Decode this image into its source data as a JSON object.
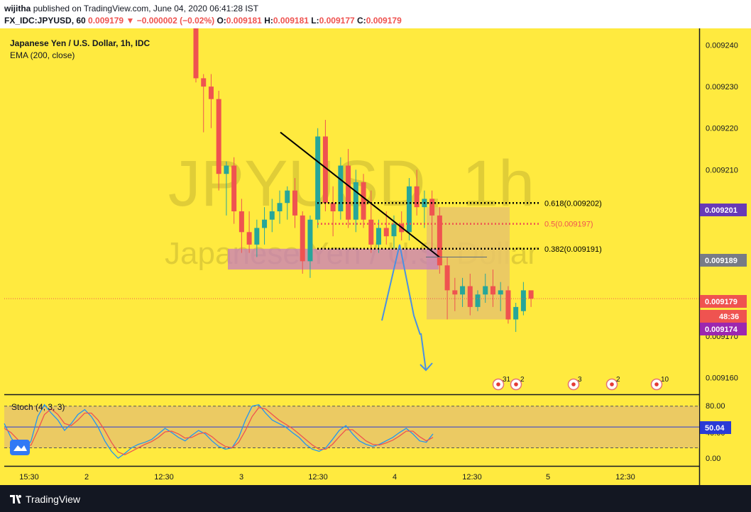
{
  "header": {
    "publisher": "wijitha",
    "published_text": "published on TradingView.com, June 04, 2020 06:41:28 IST",
    "symbol_line": "FX_IDC:JPYUSD, 60",
    "last": "0.009179",
    "change_arrow": "▼",
    "change": "−0.000002 (−0.02%)",
    "o_label": "O:",
    "o_value": "0.009181",
    "h_label": "H:",
    "h_value": "0.009181",
    "l_label": "L:",
    "l_value": "0.009177",
    "c_label": "C:",
    "c_value": "0.009179"
  },
  "legend": {
    "title": "Japanese Yen / U.S. Dollar, 1h, IDC",
    "ema": "EMA (200, close)"
  },
  "watermark": {
    "main": "JPYUSD, 1h",
    "sub": "Japanese Yen / U.S. Dollar"
  },
  "colors": {
    "background": "#ffea3f",
    "up": "#26a69a",
    "down": "#ef5350",
    "zone": "#c77bc0",
    "box": "#e8c46a",
    "trendline": "#000000",
    "arrow": "#4a90e2"
  },
  "footer": {
    "brand": "TradingView"
  },
  "chart_data": [
    {
      "type": "candlestick",
      "ylim": [
        0.009156,
        0.009244
      ],
      "y_ticks": [
        "0.009240",
        "0.009230",
        "0.009220",
        "0.009210",
        "0.009170",
        "0.009160"
      ],
      "x_ticks": [
        "15:30",
        "2",
        "12:30",
        "3",
        "12:30",
        "4",
        "12:30",
        "5",
        "12:30"
      ],
      "candles": [
        {
          "o": 0.00925,
          "h": 0.00925,
          "l": 0.009231,
          "c": 0.009232
        },
        {
          "o": 0.009232,
          "h": 0.009233,
          "l": 0.009219,
          "c": 0.00923
        },
        {
          "o": 0.00923,
          "h": 0.009233,
          "l": 0.00922,
          "c": 0.009227
        },
        {
          "o": 0.009227,
          "h": 0.009229,
          "l": 0.009205,
          "c": 0.009209
        },
        {
          "o": 0.009209,
          "h": 0.009212,
          "l": 0.009199,
          "c": 0.009211
        },
        {
          "o": 0.009211,
          "h": 0.009213,
          "l": 0.009197,
          "c": 0.0092
        },
        {
          "o": 0.0092,
          "h": 0.009203,
          "l": 0.00919,
          "c": 0.009195
        },
        {
          "o": 0.009195,
          "h": 0.0092,
          "l": 0.00919,
          "c": 0.009192
        },
        {
          "o": 0.009192,
          "h": 0.009198,
          "l": 0.009189,
          "c": 0.009196
        },
        {
          "o": 0.009196,
          "h": 0.009201,
          "l": 0.009192,
          "c": 0.009198
        },
        {
          "o": 0.009198,
          "h": 0.009203,
          "l": 0.009195,
          "c": 0.0092
        },
        {
          "o": 0.0092,
          "h": 0.009205,
          "l": 0.009197,
          "c": 0.009202
        },
        {
          "o": 0.009202,
          "h": 0.009206,
          "l": 0.009198,
          "c": 0.009205
        },
        {
          "o": 0.009205,
          "h": 0.009208,
          "l": 0.009196,
          "c": 0.009199
        },
        {
          "o": 0.009199,
          "h": 0.0092,
          "l": 0.009185,
          "c": 0.009188
        },
        {
          "o": 0.009188,
          "h": 0.009199,
          "l": 0.009184,
          "c": 0.009198
        },
        {
          "o": 0.009198,
          "h": 0.00922,
          "l": 0.009196,
          "c": 0.009218
        },
        {
          "o": 0.009218,
          "h": 0.009222,
          "l": 0.0092,
          "c": 0.009202
        },
        {
          "o": 0.009202,
          "h": 0.009206,
          "l": 0.009194,
          "c": 0.0092
        },
        {
          "o": 0.0092,
          "h": 0.009213,
          "l": 0.009198,
          "c": 0.009211
        },
        {
          "o": 0.009211,
          "h": 0.009215,
          "l": 0.009196,
          "c": 0.009198
        },
        {
          "o": 0.009198,
          "h": 0.00921,
          "l": 0.009195,
          "c": 0.009207
        },
        {
          "o": 0.009207,
          "h": 0.009209,
          "l": 0.009196,
          "c": 0.009198
        },
        {
          "o": 0.009198,
          "h": 0.009205,
          "l": 0.00919,
          "c": 0.009192
        },
        {
          "o": 0.009192,
          "h": 0.009198,
          "l": 0.00919,
          "c": 0.009196
        },
        {
          "o": 0.009196,
          "h": 0.0092,
          "l": 0.009192,
          "c": 0.009194
        },
        {
          "o": 0.009194,
          "h": 0.009199,
          "l": 0.009191,
          "c": 0.009197
        },
        {
          "o": 0.009197,
          "h": 0.0092,
          "l": 0.009193,
          "c": 0.009195
        },
        {
          "o": 0.009195,
          "h": 0.009208,
          "l": 0.009193,
          "c": 0.009206
        },
        {
          "o": 0.009206,
          "h": 0.00921,
          "l": 0.009199,
          "c": 0.009201
        },
        {
          "o": 0.009201,
          "h": 0.009205,
          "l": 0.009196,
          "c": 0.009203
        },
        {
          "o": 0.009203,
          "h": 0.009205,
          "l": 0.009191,
          "c": 0.009199
        },
        {
          "o": 0.009199,
          "h": 0.009201,
          "l": 0.009185,
          "c": 0.009187
        },
        {
          "o": 0.009187,
          "h": 0.009189,
          "l": 0.009174,
          "c": 0.009181
        },
        {
          "o": 0.009181,
          "h": 0.009184,
          "l": 0.009176,
          "c": 0.00918
        },
        {
          "o": 0.00918,
          "h": 0.009184,
          "l": 0.009177,
          "c": 0.009182
        },
        {
          "o": 0.009182,
          "h": 0.009185,
          "l": 0.009175,
          "c": 0.009177
        },
        {
          "o": 0.009177,
          "h": 0.009181,
          "l": 0.009176,
          "c": 0.00918
        },
        {
          "o": 0.00918,
          "h": 0.009185,
          "l": 0.009178,
          "c": 0.009182
        },
        {
          "o": 0.009182,
          "h": 0.009186,
          "l": 0.009177,
          "c": 0.00918
        },
        {
          "o": 0.00918,
          "h": 0.009183,
          "l": 0.009176,
          "c": 0.009181
        },
        {
          "o": 0.009181,
          "h": 0.009182,
          "l": 0.009173,
          "c": 0.009174
        },
        {
          "o": 0.009174,
          "h": 0.009178,
          "l": 0.009171,
          "c": 0.009177
        },
        {
          "o": 0.009176,
          "h": 0.009183,
          "l": 0.009175,
          "c": 0.009181
        },
        {
          "o": 0.009181,
          "h": 0.009181,
          "l": 0.009177,
          "c": 0.009179
        }
      ],
      "fibonacci": [
        {
          "label": "0.618(0.009202)",
          "value": 0.009202,
          "color": "#000000"
        },
        {
          "label": "0.5(0.009197)",
          "value": 0.009197,
          "color": "#ef5350"
        },
        {
          "label": "0.382(0.009191)",
          "value": 0.009191,
          "color": "#000000"
        }
      ],
      "supply_zone": {
        "from": 0.009186,
        "to": 0.009191
      },
      "target_box": {
        "from": 0.009174,
        "to": 0.009201
      },
      "price_labels": [
        {
          "text": "0.009201",
          "value": 0.009201,
          "color": "#673ab7"
        },
        {
          "text": "0.009189",
          "value": 0.009189,
          "color": "#787b86"
        },
        {
          "text": "0.009179",
          "value": 0.009179,
          "color": "#ef5350"
        },
        {
          "text": "48:36",
          "value": 0.009177,
          "color": "#ef5350"
        },
        {
          "text": "0.009174",
          "value": 0.009174,
          "color": "#9c27b0"
        }
      ],
      "events": [
        "31",
        "2",
        "3",
        "2",
        "10"
      ]
    },
    {
      "type": "line",
      "title": "Stoch (4, 3, 3)",
      "ylim": [
        -5,
        95
      ],
      "y_ticks": [
        "80.00",
        "40.00",
        "0.00"
      ],
      "levels": [
        80,
        20
      ],
      "midline": 50,
      "current_label": "50.04",
      "series": [
        {
          "color": "#2196f3",
          "values": [
            55,
            35,
            20,
            15,
            30,
            65,
            82,
            70,
            60,
            45,
            55,
            68,
            75,
            65,
            50,
            30,
            15,
            5,
            12,
            20,
            25,
            28,
            32,
            40,
            48,
            42,
            35,
            30,
            38,
            45,
            40,
            30,
            22,
            18,
            20,
            35,
            60,
            80,
            82,
            70,
            60,
            55,
            50,
            42,
            35,
            25,
            18,
            15,
            20,
            32,
            45,
            52,
            40,
            30,
            25,
            22,
            25,
            30,
            35,
            42,
            48,
            40,
            30,
            28,
            40
          ]
        },
        {
          "color": "#ef5350",
          "values": [
            48,
            42,
            32,
            22,
            24,
            45,
            68,
            76,
            68,
            55,
            52,
            60,
            70,
            70,
            60,
            45,
            28,
            14,
            10,
            15,
            20,
            25,
            29,
            35,
            43,
            44,
            40,
            34,
            35,
            40,
            42,
            36,
            28,
            22,
            20,
            28,
            45,
            65,
            78,
            76,
            68,
            60,
            54,
            48,
            40,
            32,
            24,
            18,
            18,
            25,
            36,
            46,
            46,
            38,
            30,
            25,
            24,
            27,
            31,
            37,
            44,
            44,
            36,
            30,
            35
          ]
        }
      ]
    }
  ]
}
